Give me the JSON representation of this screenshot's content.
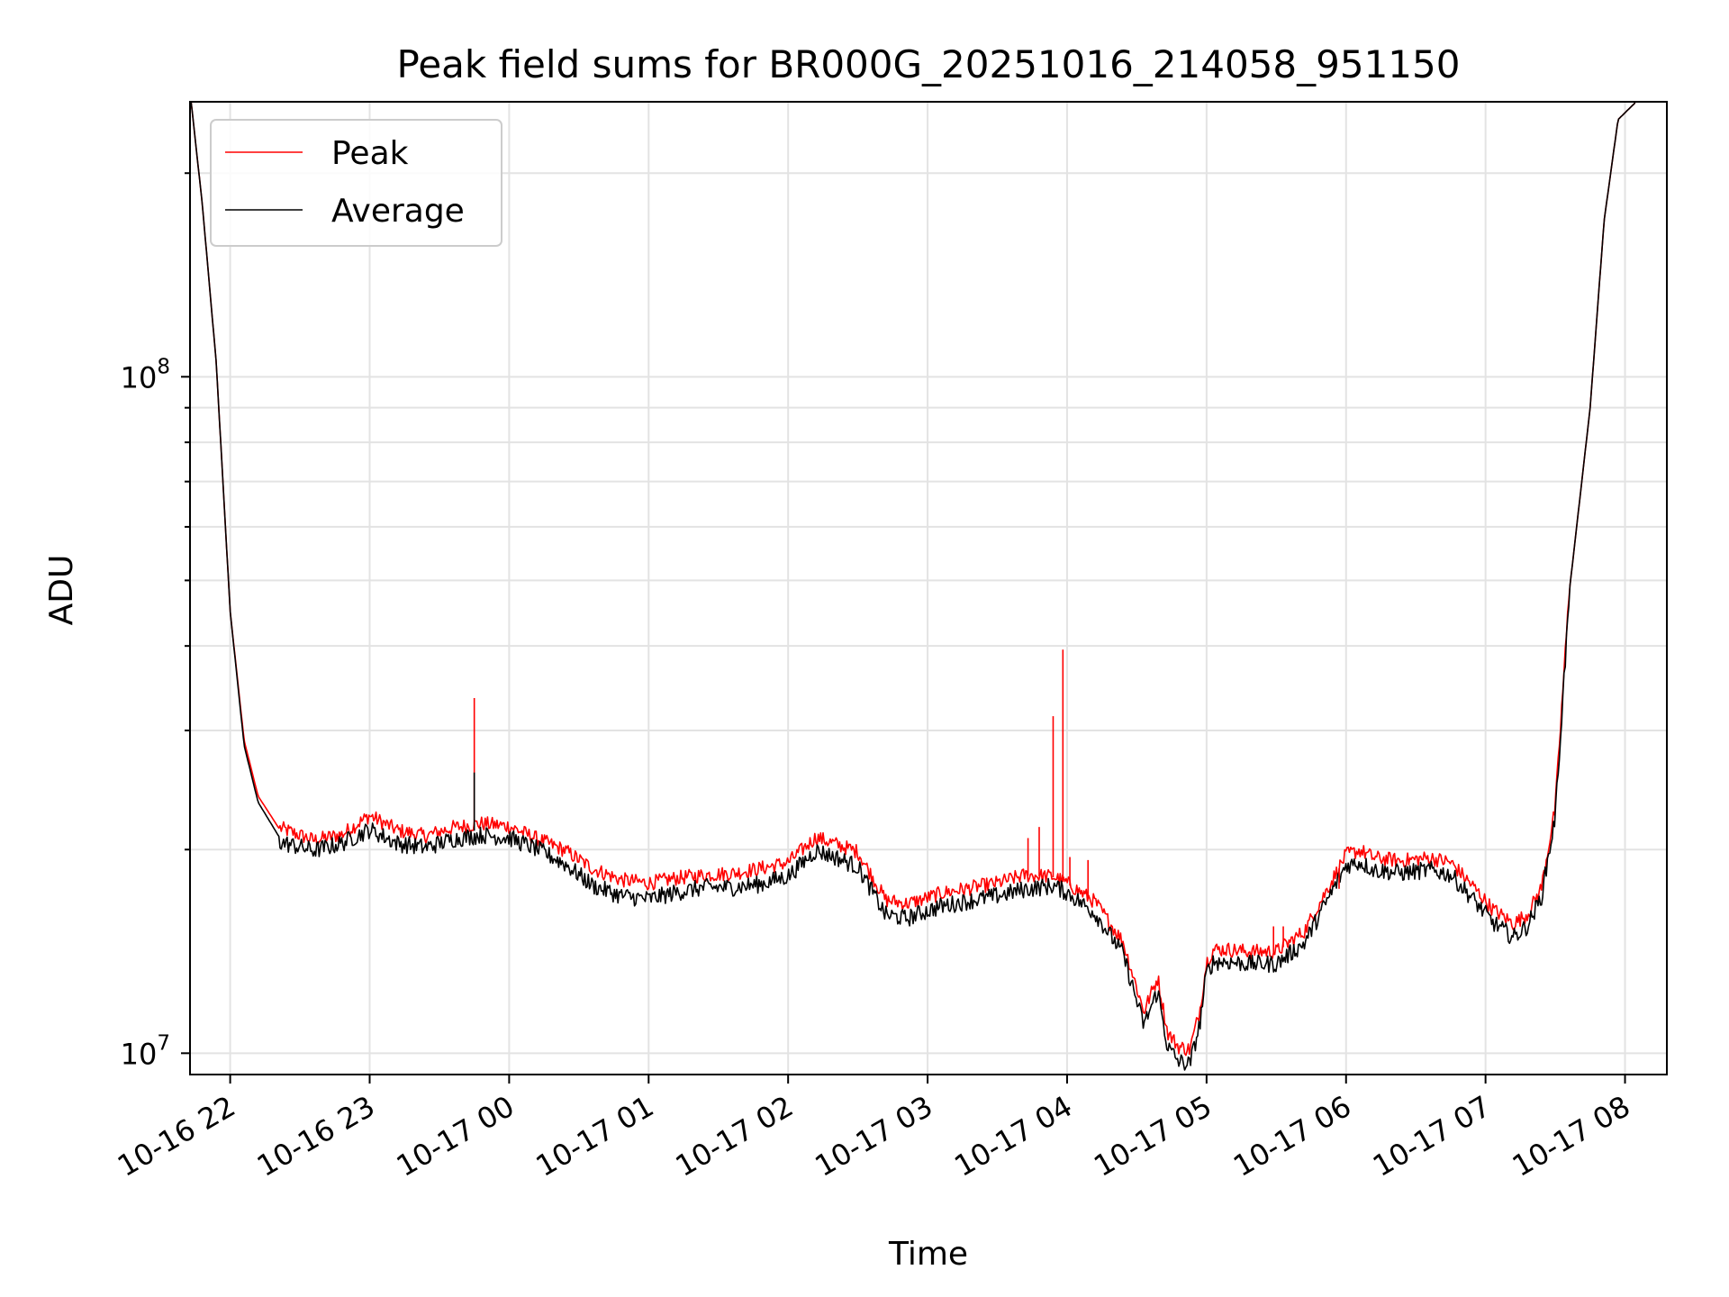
{
  "chart_data": {
    "type": "line",
    "title": "Peak field sums for BR000G_20251016_214058_951150",
    "xlabel": "Time",
    "ylabel": "ADU",
    "yscale": "log",
    "ylim": [
      9300000,
      255000000
    ],
    "xlim_hours": [
      -0.288,
      10.3
    ],
    "x_tick_labels": [
      "10-16 22",
      "10-16 23",
      "10-17 00",
      "10-17 01",
      "10-17 02",
      "10-17 03",
      "10-17 04",
      "10-17 05",
      "10-17 06",
      "10-17 07",
      "10-17 08"
    ],
    "x_ticks_hours": [
      0,
      1,
      2,
      3,
      4,
      5,
      6,
      7,
      8,
      9,
      10
    ],
    "x_units": "hours after 2025-10-16 22:00",
    "y_major_ticks": [
      {
        "value": 10000000,
        "base": "10",
        "exp": "7"
      },
      {
        "value": 100000000,
        "base": "10",
        "exp": "8"
      }
    ],
    "grid": true,
    "legend_position": "upper-left",
    "series": [
      {
        "name": "Peak",
        "color": "#ff0000",
        "x": [
          -0.28,
          -0.2,
          -0.1,
          0.0,
          0.1,
          0.2,
          0.35,
          0.6,
          0.8,
          1.0,
          1.2,
          1.4,
          1.6,
          1.8,
          2.0,
          2.2,
          2.4,
          2.6,
          2.8,
          3.0,
          3.2,
          3.4,
          3.6,
          3.8,
          4.0,
          4.2,
          4.35,
          4.5,
          4.7,
          4.85,
          4.95,
          5.1,
          5.3,
          5.5,
          5.7,
          5.9,
          6.0,
          6.2,
          6.4,
          6.55,
          6.65,
          6.72,
          6.8,
          6.88,
          6.95,
          7.0,
          7.05,
          7.15,
          7.3,
          7.5,
          7.7,
          7.85,
          8.0,
          8.1,
          8.2,
          8.4,
          8.6,
          8.75,
          8.9,
          9.05,
          9.2,
          9.3,
          9.4,
          9.5,
          9.6,
          9.75,
          9.85,
          9.95,
          10.08
        ],
        "y": [
          255000000,
          180000000,
          105000000,
          45000000,
          29000000,
          24000000,
          21500000,
          20600000,
          21000000,
          22400000,
          21300000,
          20900000,
          21500000,
          21800000,
          21600000,
          20700000,
          19900000,
          18700000,
          18000000,
          17800000,
          18100000,
          18300000,
          18400000,
          18700000,
          19100000,
          20800000,
          20300000,
          19800000,
          16800000,
          16600000,
          16800000,
          17200000,
          17500000,
          17800000,
          18300000,
          18200000,
          17800000,
          16700000,
          14600000,
          11500000,
          12900000,
          10700000,
          10200000,
          10100000,
          11500000,
          13600000,
          14200000,
          14200000,
          14100000,
          14100000,
          15100000,
          17200000,
          19600000,
          19900000,
          19400000,
          19200000,
          19400000,
          19100000,
          17700000,
          16300000,
          15500000,
          16000000,
          17500000,
          23000000,
          48000000,
          90000000,
          170000000,
          240000000,
          255000000
        ]
      },
      {
        "name": "Average",
        "color": "#000000",
        "x": [
          -0.28,
          -0.2,
          -0.1,
          0.0,
          0.1,
          0.2,
          0.35,
          0.6,
          0.8,
          1.0,
          1.2,
          1.4,
          1.6,
          1.8,
          2.0,
          2.2,
          2.4,
          2.6,
          2.8,
          3.0,
          3.2,
          3.4,
          3.6,
          3.8,
          4.0,
          4.2,
          4.35,
          4.5,
          4.7,
          4.85,
          4.95,
          5.1,
          5.3,
          5.5,
          5.7,
          5.9,
          6.0,
          6.2,
          6.4,
          6.55,
          6.65,
          6.72,
          6.8,
          6.88,
          6.95,
          7.0,
          7.05,
          7.15,
          7.3,
          7.5,
          7.7,
          7.85,
          8.0,
          8.1,
          8.2,
          8.4,
          8.6,
          8.75,
          8.9,
          9.05,
          9.2,
          9.3,
          9.4,
          9.5,
          9.6,
          9.75,
          9.85,
          9.95,
          10.08
        ],
        "y": [
          255000000,
          180000000,
          105000000,
          45000000,
          28500000,
          23500000,
          20900000,
          20300000,
          20800000,
          21800000,
          20800000,
          20500000,
          21100000,
          21400000,
          21200000,
          20400000,
          19400000,
          18000000,
          17400000,
          17200000,
          17600000,
          17900000,
          17900000,
          18100000,
          18600000,
          20300000,
          19800000,
          19200000,
          16300000,
          16100000,
          16400000,
          16800000,
          17100000,
          17400000,
          17800000,
          18000000,
          17600000,
          16400000,
          14300000,
          11200000,
          12600000,
          10400000,
          9900000,
          9800000,
          11200000,
          13400000,
          13900000,
          13900000,
          13800000,
          13800000,
          14800000,
          16900000,
          19300000,
          19500000,
          19000000,
          18800000,
          19000000,
          18700000,
          17300000,
          15900000,
          15100000,
          15700000,
          17300000,
          22800000,
          48000000,
          90000000,
          170000000,
          240000000,
          255000000
        ]
      }
    ],
    "spikes": [
      {
        "series": "Peak",
        "x": 1.75,
        "y": 33500000
      },
      {
        "series": "Average",
        "x": 1.75,
        "y": 26000000
      },
      {
        "series": "Peak",
        "x": 5.72,
        "y": 20800000
      },
      {
        "series": "Peak",
        "x": 5.8,
        "y": 21600000
      },
      {
        "series": "Peak",
        "x": 5.9,
        "y": 31500000
      },
      {
        "series": "Peak",
        "x": 5.97,
        "y": 39500000
      },
      {
        "series": "Peak",
        "x": 6.02,
        "y": 19500000
      },
      {
        "series": "Peak",
        "x": 6.15,
        "y": 19300000
      },
      {
        "series": "Peak",
        "x": 7.48,
        "y": 15400000
      },
      {
        "series": "Peak",
        "x": 7.55,
        "y": 15400000
      },
      {
        "series": "Peak",
        "x": 7.95,
        "y": 17500000
      }
    ]
  }
}
